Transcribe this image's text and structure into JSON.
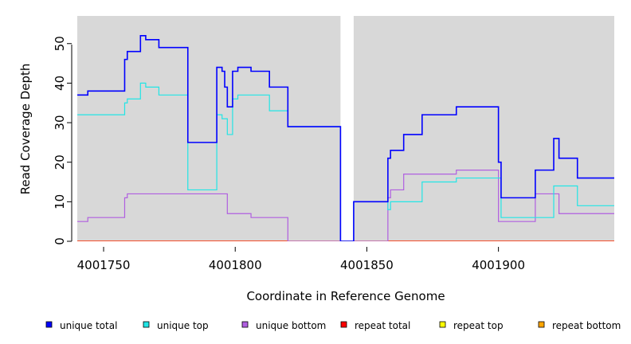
{
  "chart_data": {
    "type": "line",
    "step": true,
    "xlabel": "Coordinate in Reference Genome",
    "ylabel": "Read Coverage Depth",
    "xlim": [
      4001740,
      4001944
    ],
    "ylim": [
      0,
      57
    ],
    "x_ticks": [
      4001750,
      4001800,
      4001850,
      4001900
    ],
    "x_tick_labels": [
      "4001750",
      "4001800",
      "4001850",
      "4001900"
    ],
    "y_ticks": [
      0,
      10,
      20,
      30,
      40,
      50
    ],
    "y_tick_labels": [
      "0",
      "10",
      "20",
      "30",
      "40",
      "50"
    ],
    "grid": false,
    "background": "#d8d8d8",
    "gap_region": [
      4001840,
      4001845
    ],
    "legend_position": "bottom",
    "series": [
      {
        "name": "unique total",
        "color": "#0000ff",
        "x": [
          4001740,
          4001744,
          4001758,
          4001759,
          4001764,
          4001766,
          4001771,
          4001782,
          4001793,
          4001795,
          4001796,
          4001797,
          4001799,
          4001801,
          4001806,
          4001813,
          4001820,
          4001840,
          4001845,
          4001858,
          4001859,
          4001864,
          4001871,
          4001884,
          4001900,
          4001901,
          4001914,
          4001921,
          4001923,
          4001930,
          4001944
        ],
        "values": [
          37,
          38,
          46,
          48,
          52,
          51,
          49,
          25,
          44,
          43,
          39,
          34,
          43,
          44,
          43,
          39,
          29,
          0,
          10,
          21,
          23,
          27,
          32,
          34,
          20,
          11,
          18,
          26,
          21,
          16,
          16
        ]
      },
      {
        "name": "unique top",
        "color": "#22e5e5",
        "x": [
          4001740,
          4001758,
          4001759,
          4001764,
          4001766,
          4001771,
          4001782,
          4001793,
          4001795,
          4001797,
          4001799,
          4001801,
          4001813,
          4001820,
          4001840,
          4001845,
          4001858,
          4001859,
          4001871,
          4001884,
          4001900,
          4001901,
          4001914,
          4001921,
          4001930,
          4001944
        ],
        "values": [
          32,
          35,
          36,
          40,
          39,
          37,
          13,
          32,
          31,
          27,
          36,
          37,
          33,
          29,
          0,
          10,
          8,
          10,
          15,
          16,
          16,
          6,
          6,
          14,
          9,
          9
        ]
      },
      {
        "name": "unique bottom",
        "color": "#b05fe0",
        "x": [
          4001740,
          4001744,
          4001758,
          4001759,
          4001797,
          4001806,
          4001820,
          4001858,
          4001859,
          4001864,
          4001884,
          4001900,
          4001914,
          4001923,
          4001944
        ],
        "values": [
          5,
          6,
          11,
          12,
          7,
          6,
          0,
          11,
          13,
          17,
          18,
          5,
          12,
          7,
          7
        ]
      },
      {
        "name": "repeat total",
        "color": "#ff0000",
        "x": [
          4001740,
          4001944
        ],
        "values": [
          0,
          0
        ]
      },
      {
        "name": "repeat top",
        "color": "#ffff00",
        "x": [
          4001740,
          4001944
        ],
        "values": [
          0,
          0
        ]
      },
      {
        "name": "repeat bottom",
        "color": "#ffa500",
        "x": [
          4001740,
          4001944
        ],
        "values": [
          0,
          0
        ]
      }
    ]
  }
}
